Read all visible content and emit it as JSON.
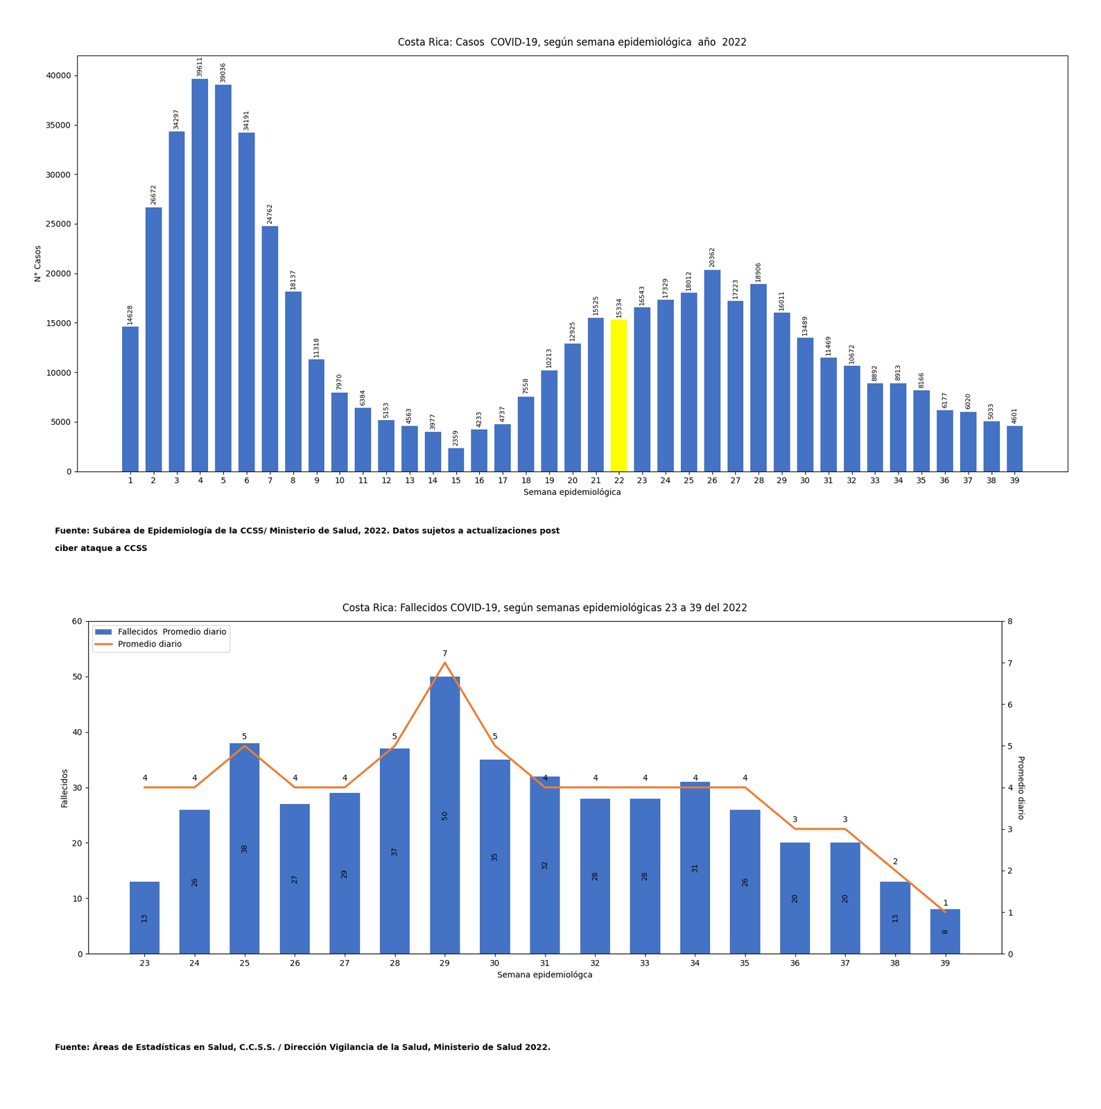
{
  "chart_data": [
    {
      "type": "bar",
      "title": "Costa Rica: Casos  COVID-19, según semana epidemiológica  año  2022",
      "xlabel": "Semana epidemiológica",
      "ylabel": "N° Casos",
      "categories": [
        "1",
        "2",
        "3",
        "4",
        "5",
        "6",
        "7",
        "8",
        "9",
        "10",
        "11",
        "12",
        "13",
        "14",
        "15",
        "16",
        "17",
        "18",
        "19",
        "20",
        "21",
        "22",
        "23",
        "24",
        "25",
        "26",
        "27",
        "28",
        "29",
        "30",
        "31",
        "32",
        "33",
        "34",
        "35",
        "36",
        "37",
        "38",
        "39"
      ],
      "values": [
        14628,
        26672,
        34297,
        39611,
        39036,
        34191,
        24762,
        18137,
        11318,
        7970,
        6384,
        5153,
        4563,
        3977,
        2359,
        4233,
        4737,
        7558,
        10213,
        12925,
        15525,
        15334,
        16543,
        17329,
        18012,
        20362,
        17223,
        18906,
        16011,
        13489,
        11469,
        10672,
        8892,
        8913,
        8166,
        6177,
        6020,
        5033,
        4601
      ],
      "colors": [
        "#4472C4",
        "#4472C4",
        "#4472C4",
        "#4472C4",
        "#4472C4",
        "#4472C4",
        "#4472C4",
        "#4472C4",
        "#4472C4",
        "#4472C4",
        "#4472C4",
        "#4472C4",
        "#4472C4",
        "#4472C4",
        "#4472C4",
        "#4472C4",
        "#4472C4",
        "#4472C4",
        "#4472C4",
        "#4472C4",
        "#4472C4",
        "#FFFF00",
        "#4472C4",
        "#4472C4",
        "#4472C4",
        "#4472C4",
        "#4472C4",
        "#4472C4",
        "#4472C4",
        "#4472C4",
        "#4472C4",
        "#4472C4",
        "#4472C4",
        "#4472C4",
        "#4472C4",
        "#4472C4",
        "#4472C4",
        "#4472C4",
        "#4472C4"
      ],
      "ylim": [
        0,
        42000
      ],
      "yticks": [
        0,
        5000,
        10000,
        15000,
        20000,
        25000,
        30000,
        35000,
        40000
      ],
      "data_labels": true,
      "annotations": [
        "Fuente: Subárea de Epidemiología de la CCSS/ Ministerio de Salud, 2022. Datos sujetos a actualizaciones post",
        "ciber ataque a CCSS"
      ]
    },
    {
      "type": "bar",
      "title": "Costa Rica: Fallecidos COVID-19, según semanas epidemiológicas 23 a 39 del 2022",
      "xlabel": "Semana epidemiológca",
      "ylabel": "Fallecidos",
      "y2label": "Promedio diario",
      "categories": [
        "23",
        "24",
        "25",
        "26",
        "27",
        "28",
        "29",
        "30",
        "31",
        "32",
        "33",
        "34",
        "35",
        "36",
        "37",
        "38",
        "39"
      ],
      "series": [
        {
          "name": "Fallecidos  Promedio diario",
          "type": "bar",
          "color": "#4472C4",
          "values": [
            13,
            26,
            38,
            27,
            29,
            37,
            50,
            35,
            32,
            28,
            28,
            31,
            26,
            20,
            20,
            13,
            8
          ]
        },
        {
          "name": "Promedio diario",
          "type": "line",
          "color": "#ED7D31",
          "axis": "y2",
          "values": [
            4,
            4,
            5,
            4,
            4,
            5,
            7,
            5,
            4,
            4,
            4,
            4,
            4,
            3,
            3,
            2,
            1
          ]
        }
      ],
      "ylim": [
        0,
        60
      ],
      "yticks": [
        0,
        10,
        20,
        30,
        40,
        50,
        60
      ],
      "y2lim": [
        0,
        8
      ],
      "y2ticks": [
        0,
        1,
        2,
        3,
        4,
        5,
        6,
        7,
        8
      ],
      "data_labels": true,
      "legend": "upper left",
      "annotations": [
        "Fuente: Áreas de Estadísticas en Salud, C.C.S.S. / Dirección Vigilancia de la Salud, Ministerio de Salud 2022."
      ]
    }
  ]
}
